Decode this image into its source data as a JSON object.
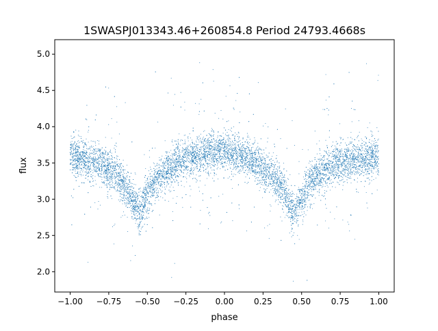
{
  "chart_data": {
    "type": "scatter",
    "title": "1SWASPJ013343.46+260854.8 Period 24793.4668s",
    "xlabel": "phase",
    "ylabel": "flux",
    "xlim": [
      -1.1,
      1.1
    ],
    "ylim": [
      1.72,
      5.2
    ],
    "xticks": [
      -1.0,
      -0.75,
      -0.5,
      -0.25,
      0.0,
      0.25,
      0.5,
      0.75,
      1.0
    ],
    "xtick_labels": [
      "−1.00",
      "−0.75",
      "−0.50",
      "−0.25",
      "0.00",
      "0.25",
      "0.50",
      "0.75",
      "1.00"
    ],
    "yticks": [
      2.0,
      2.5,
      3.0,
      3.5,
      4.0,
      4.5,
      5.0
    ],
    "ytick_labels": [
      "2.0",
      "2.5",
      "3.0",
      "3.5",
      "4.0",
      "4.5",
      "5.0"
    ],
    "grid": false,
    "marker_color": "#1f77b4",
    "series": [
      {
        "name": "",
        "description_points": [
          [
            -1.0,
            3.6
          ],
          [
            -0.9,
            3.55
          ],
          [
            -0.8,
            3.48
          ],
          [
            -0.7,
            3.35
          ],
          [
            -0.62,
            3.1
          ],
          [
            -0.55,
            2.8
          ],
          [
            -0.5,
            3.05
          ],
          [
            -0.45,
            3.25
          ],
          [
            -0.35,
            3.45
          ],
          [
            -0.25,
            3.55
          ],
          [
            -0.1,
            3.65
          ],
          [
            0.0,
            3.65
          ],
          [
            0.1,
            3.6
          ],
          [
            0.2,
            3.5
          ],
          [
            0.3,
            3.35
          ],
          [
            0.38,
            3.15
          ],
          [
            0.45,
            2.78
          ],
          [
            0.5,
            3.0
          ],
          [
            0.55,
            3.2
          ],
          [
            0.65,
            3.4
          ],
          [
            0.75,
            3.5
          ],
          [
            0.85,
            3.55
          ],
          [
            1.0,
            3.6
          ]
        ]
      }
    ]
  }
}
